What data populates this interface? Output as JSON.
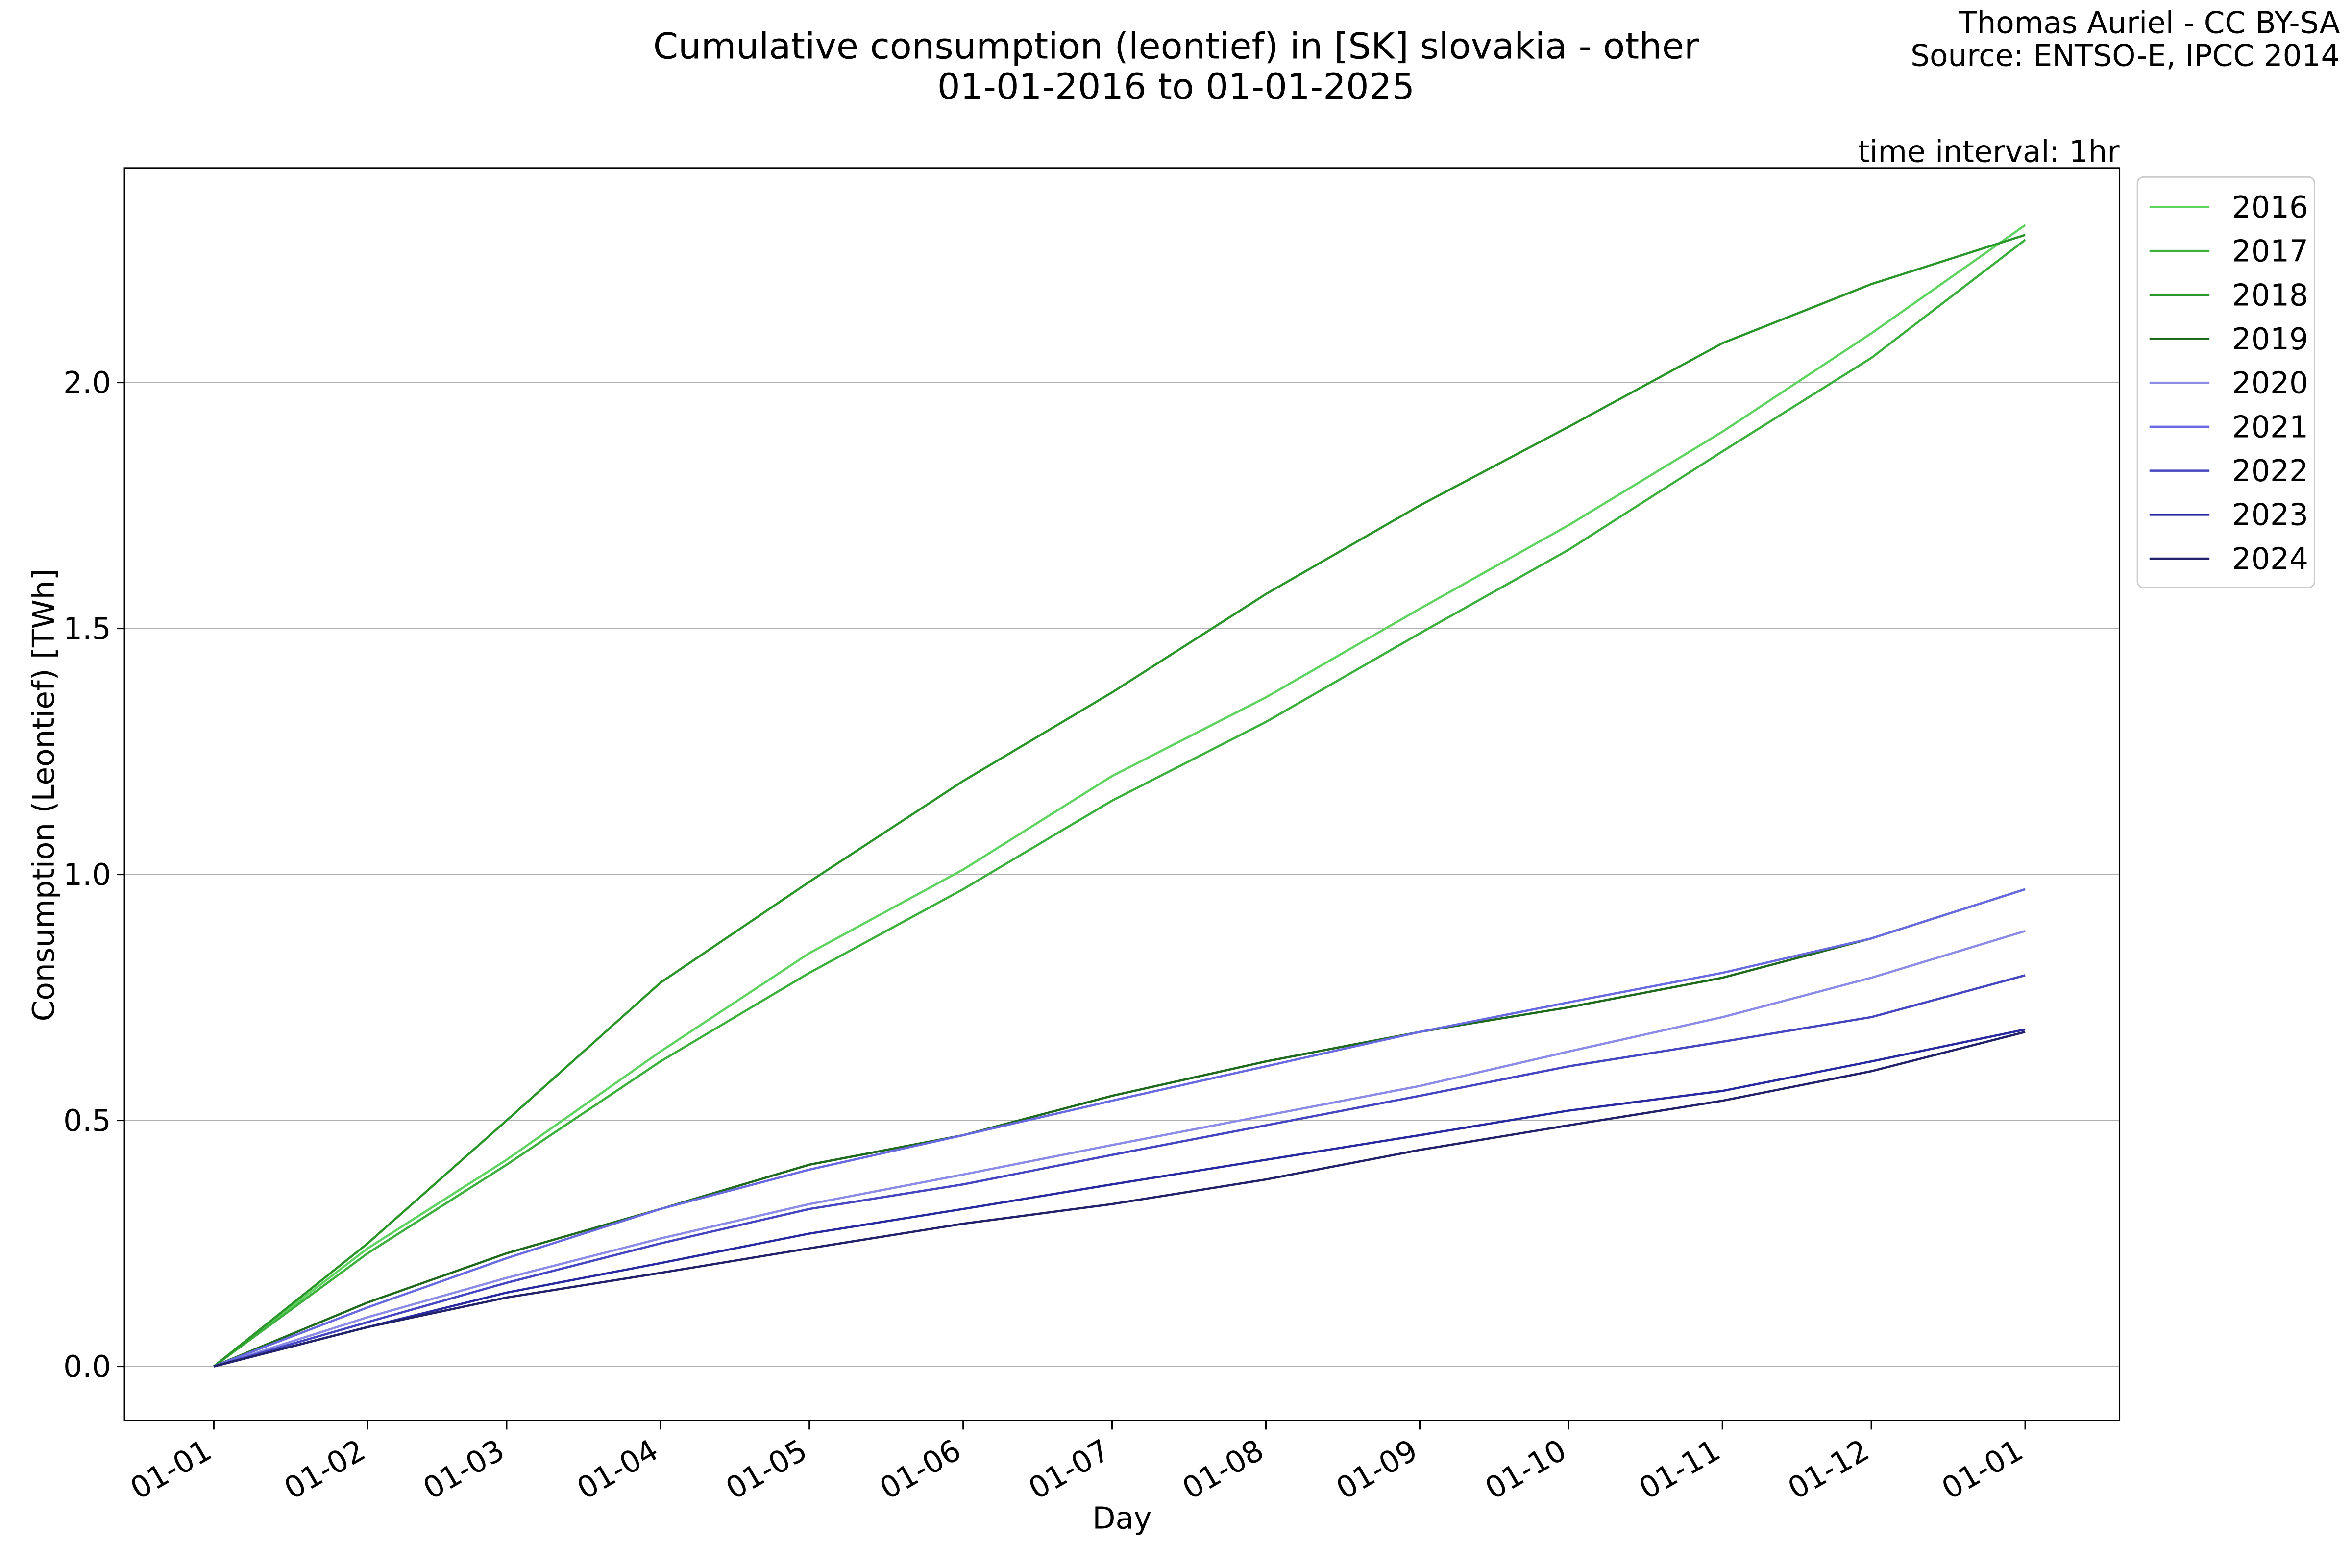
{
  "chart_data": {
    "type": "line",
    "title": "Cumulative consumption (leontief) in [SK] slovakia - other",
    "subtitle": "01-01-2016 to 01-01-2025",
    "credits": [
      "Thomas Auriel - CC BY-SA",
      "Source: ENTSO-E, IPCC 2014"
    ],
    "annotation": "time interval: 1hr",
    "x_label": "Day",
    "y_label": "Consumption (Leontief) [TWh]",
    "x": [
      0,
      31,
      59,
      90,
      120,
      151,
      181,
      212,
      243,
      273,
      304,
      334,
      365
    ],
    "xlim": [
      -18,
      384
    ],
    "xticks": [
      {
        "value": 0,
        "label": "01-01"
      },
      {
        "value": 31,
        "label": "01-02"
      },
      {
        "value": 59,
        "label": "01-03"
      },
      {
        "value": 90,
        "label": "01-04"
      },
      {
        "value": 120,
        "label": "01-05"
      },
      {
        "value": 151,
        "label": "01-06"
      },
      {
        "value": 181,
        "label": "01-07"
      },
      {
        "value": 212,
        "label": "01-08"
      },
      {
        "value": 243,
        "label": "01-09"
      },
      {
        "value": 273,
        "label": "01-10"
      },
      {
        "value": 304,
        "label": "01-11"
      },
      {
        "value": 334,
        "label": "01-12"
      },
      {
        "value": 365,
        "label": "01-01"
      }
    ],
    "ylim": [
      -0.11,
      2.436
    ],
    "yticks": [
      {
        "value": 0,
        "label": "0.0"
      },
      0.5,
      {
        "value": 1,
        "label": "1.0"
      },
      1.5,
      {
        "value": 2,
        "label": "2.0"
      }
    ],
    "grid": true,
    "legend": "upper right",
    "series": [
      {
        "name": "2016",
        "color": "#5fd35f",
        "values": [
          0,
          0.24,
          0.42,
          0.64,
          0.84,
          1.01,
          1.2,
          1.36,
          1.54,
          1.71,
          1.9,
          2.1,
          2.32
        ]
      },
      {
        "name": "2017",
        "color": "#3cb03c",
        "values": [
          0,
          0.23,
          0.41,
          0.62,
          0.8,
          0.97,
          1.15,
          1.31,
          1.49,
          1.66,
          1.86,
          2.05,
          2.29
        ]
      },
      {
        "name": "2018",
        "color": "#2a962a",
        "values": [
          0,
          0.25,
          0.5,
          0.78,
          0.985,
          1.19,
          1.37,
          1.57,
          1.75,
          1.91,
          2.08,
          2.2,
          2.3
        ]
      },
      {
        "name": "2019",
        "color": "#1f6a1f",
        "values": [
          0,
          0.13,
          0.23,
          0.32,
          0.41,
          0.47,
          0.55,
          0.62,
          0.68,
          0.73,
          0.79,
          0.87,
          0.97
        ]
      },
      {
        "name": "2020",
        "color": "#8c8ce6",
        "values": [
          0,
          0.1,
          0.18,
          0.26,
          0.33,
          0.39,
          0.45,
          0.51,
          0.57,
          0.64,
          0.71,
          0.79,
          0.885
        ]
      },
      {
        "name": "2021",
        "color": "#6a6ae0",
        "values": [
          0,
          0.12,
          0.22,
          0.32,
          0.4,
          0.47,
          0.54,
          0.61,
          0.68,
          0.74,
          0.8,
          0.87,
          0.97
        ]
      },
      {
        "name": "2022",
        "color": "#4646c0",
        "values": [
          0,
          0.09,
          0.17,
          0.25,
          0.32,
          0.37,
          0.43,
          0.49,
          0.55,
          0.61,
          0.66,
          0.71,
          0.795
        ]
      },
      {
        "name": "2023",
        "color": "#2a2aa0",
        "values": [
          0,
          0.08,
          0.15,
          0.21,
          0.27,
          0.32,
          0.37,
          0.42,
          0.47,
          0.52,
          0.56,
          0.62,
          0.685
        ]
      },
      {
        "name": "2024",
        "color": "#22226a",
        "values": [
          0,
          0.08,
          0.14,
          0.19,
          0.24,
          0.29,
          0.33,
          0.38,
          0.44,
          0.49,
          0.54,
          0.6,
          0.68
        ]
      }
    ]
  }
}
